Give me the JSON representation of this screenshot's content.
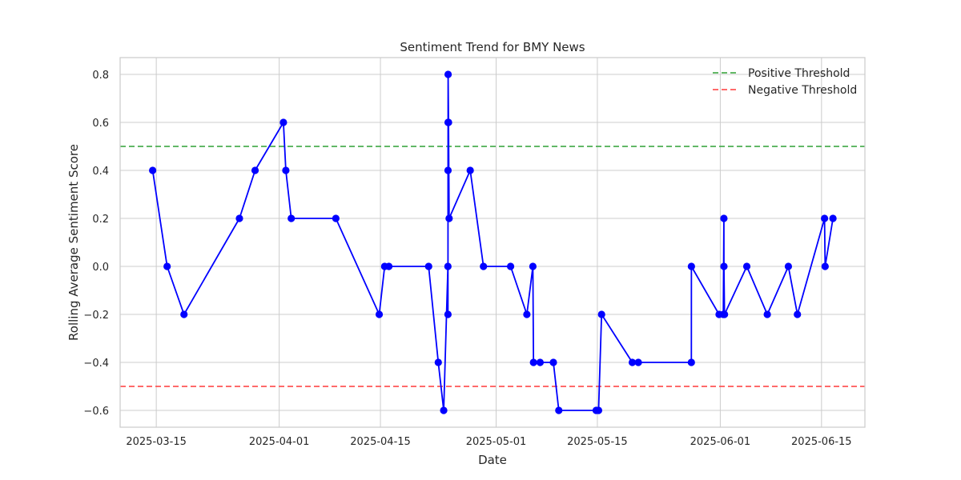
{
  "chart_data": {
    "type": "line",
    "title": "Sentiment Trend for BMY News",
    "xlabel": "Date",
    "ylabel": "Rolling Average Sentiment Score",
    "xlim": [
      "2025-03-10",
      "2025-06-21"
    ],
    "ylim": [
      -0.67,
      0.87
    ],
    "xticks": [
      "2025-03-15",
      "2025-04-01",
      "2025-04-15",
      "2025-05-01",
      "2025-05-15",
      "2025-06-01",
      "2025-06-15"
    ],
    "yticks": [
      -0.6,
      -0.4,
      -0.2,
      0.0,
      0.2,
      0.4,
      0.6,
      0.8
    ],
    "ytick_labels": [
      "−0.6",
      "−0.4",
      "−0.2",
      "0.0",
      "0.2",
      "0.4",
      "0.6",
      "0.8"
    ],
    "grid": true,
    "legend_position": "top-right",
    "series": [
      {
        "color": "#0000ff",
        "points": [
          [
            "2025-03-14T12:00",
            0.4
          ],
          [
            "2025-03-16T12:00",
            0.0
          ],
          [
            "2025-03-18T20:00",
            -0.2
          ],
          [
            "2025-03-26T12:00",
            0.2
          ],
          [
            "2025-03-28T16:00",
            0.4
          ],
          [
            "2025-04-01T14:00",
            0.6
          ],
          [
            "2025-04-01T22:00",
            0.4
          ],
          [
            "2025-04-02T16:00",
            0.2
          ],
          [
            "2025-04-08T20:00",
            0.2
          ],
          [
            "2025-04-14T20:00",
            -0.2
          ],
          [
            "2025-04-15T14:00",
            0.0
          ],
          [
            "2025-04-16T04:00",
            0.0
          ],
          [
            "2025-04-21T16:00",
            0.0
          ],
          [
            "2025-04-23T00:00",
            -0.4
          ],
          [
            "2025-04-23T18:00",
            -0.6
          ],
          [
            "2025-04-24T08:00",
            0.0
          ],
          [
            "2025-04-24T08:10",
            -0.2
          ],
          [
            "2025-04-24T08:20",
            0.4
          ],
          [
            "2025-04-24T08:30",
            0.6
          ],
          [
            "2025-04-24T08:40",
            0.8
          ],
          [
            "2025-04-24T10:00",
            0.6
          ],
          [
            "2025-04-24T12:00",
            0.2
          ],
          [
            "2025-04-27T10:00",
            0.4
          ],
          [
            "2025-04-29T06:00",
            0.0
          ],
          [
            "2025-05-03T00:00",
            0.0
          ],
          [
            "2025-05-05T06:00",
            -0.2
          ],
          [
            "2025-05-06T02:00",
            0.0
          ],
          [
            "2025-05-06T04:00",
            -0.4
          ],
          [
            "2025-05-07T02:00",
            -0.4
          ],
          [
            "2025-05-08T22:00",
            -0.4
          ],
          [
            "2025-05-09T16:00",
            -0.6
          ],
          [
            "2025-05-14T20:00",
            -0.6
          ],
          [
            "2025-05-15T04:00",
            -0.6
          ],
          [
            "2025-05-15T14:00",
            -0.2
          ],
          [
            "2025-05-19T20:00",
            -0.4
          ],
          [
            "2025-05-20T16:00",
            -0.4
          ],
          [
            "2025-05-28T00:00",
            -0.4
          ],
          [
            "2025-05-28T00:10",
            0.0
          ],
          [
            "2025-05-31T20:00",
            -0.2
          ],
          [
            "2025-06-01T10:00",
            -0.2
          ],
          [
            "2025-06-01T12:00",
            0.2
          ],
          [
            "2025-06-01T12:10",
            0.0
          ],
          [
            "2025-06-01T14:00",
            -0.2
          ],
          [
            "2025-06-04T16:00",
            0.0
          ],
          [
            "2025-06-07T12:00",
            -0.2
          ],
          [
            "2025-06-10T10:00",
            0.0
          ],
          [
            "2025-06-11T16:00",
            -0.2
          ],
          [
            "2025-06-15T10:00",
            0.2
          ],
          [
            "2025-06-15T12:00",
            0.0
          ],
          [
            "2025-06-16T14:00",
            0.2
          ]
        ]
      }
    ],
    "thresholds": [
      {
        "name": "Positive Threshold",
        "value": 0.5,
        "color": "#4caf50"
      },
      {
        "name": "Negative Threshold",
        "value": -0.5,
        "color": "#ff5555"
      }
    ]
  }
}
